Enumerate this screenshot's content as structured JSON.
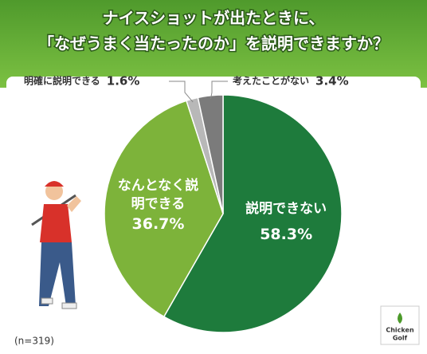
{
  "chart_data": {
    "type": "pie",
    "title": [
      "ナイスショットが出たときに、",
      "「なぜうまく当たったのか」を説明できますか？"
    ],
    "categories": [
      "説明できない",
      "なんとなく説明できる",
      "明確に説明できる",
      "考えたことがない"
    ],
    "values": [
      58.3,
      36.7,
      1.6,
      3.4
    ],
    "value_labels": [
      "58.3%",
      "36.7%",
      "1.6%",
      "3.4%"
    ],
    "colors": [
      "#1e7b3c",
      "#7db33a",
      "#b8b8b8",
      "#7b7b7b"
    ],
    "note": "(n=319)",
    "logo": [
      "Chicken",
      "Golf"
    ]
  }
}
